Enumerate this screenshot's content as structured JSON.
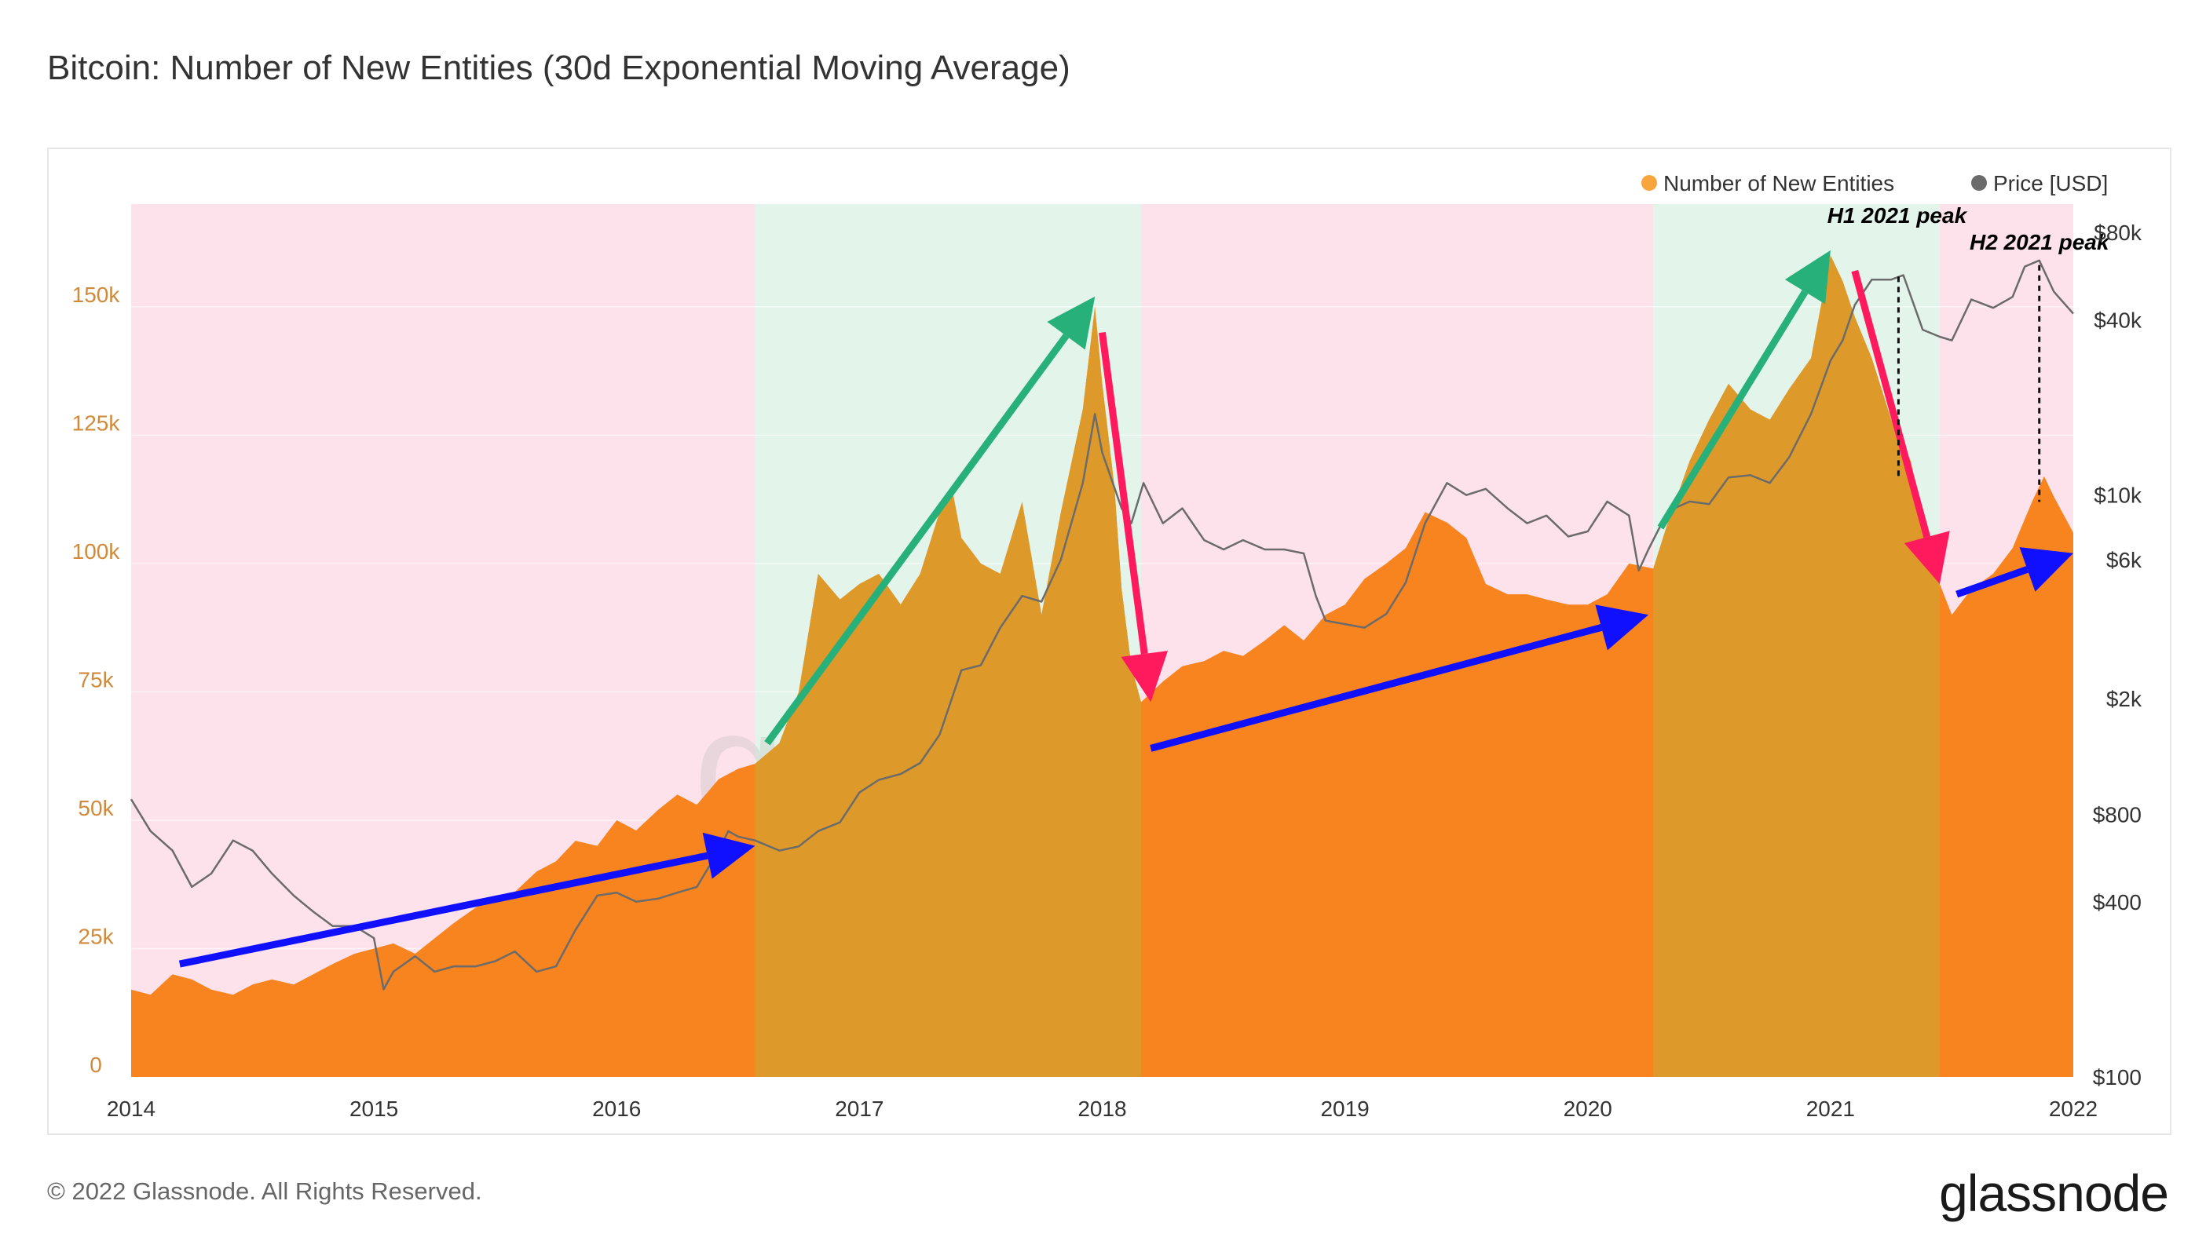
{
  "title": "Bitcoin: Number of New Entities (30d Exponential Moving Average)",
  "footer": "© 2022 Glassnode. All Rights Reserved.",
  "logo": "glassnode",
  "watermark": "glassnode",
  "colors": {
    "entities": "#f7841f",
    "entities_green": "#dd9a2a",
    "price": "#6b6b6b",
    "bg_pink": "#fde2ec",
    "bg_green": "#e3f4ea",
    "arrow_blue": "#1010ff",
    "arrow_green": "#27b07a",
    "arrow_red": "#ff1a5e",
    "axis_left": "#d08a3a"
  },
  "chart_data": {
    "type": "area",
    "legend": [
      {
        "name": "Number of New Entities",
        "color": "#f7a53c"
      },
      {
        "name": "Price [USD]",
        "color": "#6b6b6b"
      }
    ],
    "legend_position": "top-right",
    "x_range": [
      2014.0,
      2022.0
    ],
    "x_ticks": [
      "2014",
      "2015",
      "2016",
      "2017",
      "2018",
      "2019",
      "2020",
      "2021",
      "2022"
    ],
    "y_left": {
      "range": [
        0,
        170000
      ],
      "ticks": [
        0,
        25000,
        50000,
        75000,
        100000,
        125000,
        150000
      ],
      "tick_labels": [
        "0",
        "25k",
        "50k",
        "75k",
        "100k",
        "125k",
        "150k"
      ]
    },
    "y_right": {
      "scale": "log",
      "range": [
        100,
        100000
      ],
      "ticks": [
        100,
        400,
        800,
        2000,
        6000,
        10000,
        40000,
        80000
      ],
      "tick_labels": [
        "$100",
        "$400",
        "$800",
        "$2k",
        "$6k",
        "$10k",
        "$40k",
        "$80k"
      ]
    },
    "regions": [
      {
        "from": 2014.0,
        "to": 2016.57,
        "phase": "bear"
      },
      {
        "from": 2016.57,
        "to": 2018.16,
        "phase": "bull"
      },
      {
        "from": 2018.16,
        "to": 2020.27,
        "phase": "bear"
      },
      {
        "from": 2020.27,
        "to": 2021.45,
        "phase": "bull"
      },
      {
        "from": 2021.45,
        "to": 2022.0,
        "phase": "bear"
      }
    ],
    "series": [
      {
        "name": "Number of New Entities",
        "x": [
          2014.0,
          2014.08,
          2014.17,
          2014.25,
          2014.33,
          2014.42,
          2014.5,
          2014.58,
          2014.67,
          2014.75,
          2014.83,
          2014.92,
          2015.0,
          2015.08,
          2015.17,
          2015.25,
          2015.33,
          2015.42,
          2015.5,
          2015.58,
          2015.67,
          2015.75,
          2015.83,
          2015.92,
          2016.0,
          2016.08,
          2016.17,
          2016.25,
          2016.33,
          2016.42,
          2016.5,
          2016.57,
          2016.67,
          2016.75,
          2016.83,
          2016.92,
          2017.0,
          2017.08,
          2017.17,
          2017.25,
          2017.33,
          2017.38,
          2017.42,
          2017.5,
          2017.58,
          2017.67,
          2017.75,
          2017.83,
          2017.92,
          2017.97,
          2018.0,
          2018.05,
          2018.08,
          2018.12,
          2018.16,
          2018.25,
          2018.33,
          2018.42,
          2018.5,
          2018.58,
          2018.67,
          2018.75,
          2018.83,
          2018.92,
          2019.0,
          2019.08,
          2019.17,
          2019.25,
          2019.33,
          2019.42,
          2019.5,
          2019.58,
          2019.67,
          2019.75,
          2019.83,
          2019.92,
          2020.0,
          2020.08,
          2020.17,
          2020.27,
          2020.33,
          2020.42,
          2020.5,
          2020.58,
          2020.67,
          2020.75,
          2020.83,
          2020.92,
          2021.0,
          2021.05,
          2021.1,
          2021.17,
          2021.25,
          2021.33,
          2021.42,
          2021.45,
          2021.5,
          2021.58,
          2021.67,
          2021.75,
          2021.83,
          2021.88,
          2021.92,
          2022.0
        ],
        "y": [
          17000,
          16000,
          20000,
          19000,
          17000,
          16000,
          18000,
          19000,
          18000,
          20000,
          22000,
          24000,
          25000,
          26000,
          24000,
          27000,
          30000,
          33000,
          35000,
          36000,
          40000,
          42000,
          46000,
          45000,
          50000,
          48000,
          52000,
          55000,
          53000,
          58000,
          60000,
          61000,
          65000,
          75000,
          98000,
          93000,
          96000,
          98000,
          92000,
          98000,
          110000,
          115000,
          105000,
          100000,
          98000,
          112000,
          90000,
          110000,
          130000,
          150000,
          135000,
          115000,
          95000,
          80000,
          73000,
          77000,
          80000,
          81000,
          83000,
          82000,
          85000,
          88000,
          85000,
          90000,
          92000,
          97000,
          100000,
          103000,
          110000,
          108000,
          105000,
          96000,
          94000,
          94000,
          93000,
          92000,
          92000,
          94000,
          100000,
          99000,
          108000,
          120000,
          128000,
          135000,
          130000,
          128000,
          134000,
          140000,
          160000,
          155000,
          148000,
          140000,
          128000,
          120000,
          100000,
          96000,
          90000,
          95000,
          98000,
          103000,
          112000,
          117000,
          113000,
          106000
        ]
      },
      {
        "name": "Price [USD]",
        "x": [
          2014.0,
          2014.08,
          2014.17,
          2014.25,
          2014.33,
          2014.42,
          2014.5,
          2014.58,
          2014.67,
          2014.75,
          2014.83,
          2014.92,
          2015.0,
          2015.04,
          2015.08,
          2015.17,
          2015.25,
          2015.33,
          2015.42,
          2015.5,
          2015.58,
          2015.67,
          2015.75,
          2015.83,
          2015.92,
          2016.0,
          2016.08,
          2016.17,
          2016.25,
          2016.33,
          2016.42,
          2016.46,
          2016.5,
          2016.57,
          2016.67,
          2016.75,
          2016.83,
          2016.92,
          2017.0,
          2017.08,
          2017.17,
          2017.25,
          2017.33,
          2017.42,
          2017.5,
          2017.58,
          2017.67,
          2017.75,
          2017.83,
          2017.92,
          2017.97,
          2018.0,
          2018.08,
          2018.12,
          2018.17,
          2018.25,
          2018.33,
          2018.42,
          2018.5,
          2018.58,
          2018.67,
          2018.75,
          2018.83,
          2018.88,
          2018.92,
          2019.0,
          2019.08,
          2019.17,
          2019.25,
          2019.33,
          2019.42,
          2019.5,
          2019.58,
          2019.67,
          2019.75,
          2019.83,
          2019.92,
          2020.0,
          2020.08,
          2020.17,
          2020.21,
          2020.25,
          2020.33,
          2020.42,
          2020.5,
          2020.58,
          2020.67,
          2020.75,
          2020.83,
          2020.92,
          2021.0,
          2021.05,
          2021.1,
          2021.17,
          2021.25,
          2021.3,
          2021.38,
          2021.45,
          2021.5,
          2021.58,
          2021.67,
          2021.75,
          2021.8,
          2021.86,
          2021.92,
          2022.0
        ],
        "y": [
          900,
          700,
          600,
          450,
          500,
          650,
          600,
          500,
          420,
          370,
          330,
          330,
          300,
          200,
          230,
          260,
          230,
          240,
          240,
          250,
          270,
          230,
          240,
          320,
          420,
          430,
          400,
          410,
          430,
          450,
          600,
          700,
          670,
          650,
          600,
          620,
          700,
          750,
          950,
          1050,
          1100,
          1200,
          1500,
          2500,
          2600,
          3500,
          4500,
          4300,
          6000,
          11000,
          19000,
          14000,
          9000,
          8000,
          11000,
          8000,
          9000,
          7000,
          6500,
          7000,
          6500,
          6500,
          6300,
          4500,
          3700,
          3600,
          3500,
          3900,
          5000,
          8000,
          11000,
          10000,
          10500,
          9000,
          8000,
          8500,
          7200,
          7500,
          9500,
          8500,
          5500,
          6500,
          8800,
          9500,
          9300,
          11500,
          11700,
          11000,
          13500,
          19000,
          29000,
          34000,
          45000,
          55000,
          55000,
          57000,
          37000,
          35000,
          34000,
          47000,
          44000,
          48000,
          61000,
          64000,
          50000,
          42000
        ]
      }
    ],
    "annotations": [
      {
        "text": "H1 2021 peak",
        "x": 2021.28,
        "price": 63000
      },
      {
        "text": "H2 2021 peak",
        "x": 2021.86,
        "price": 69000
      }
    ]
  }
}
